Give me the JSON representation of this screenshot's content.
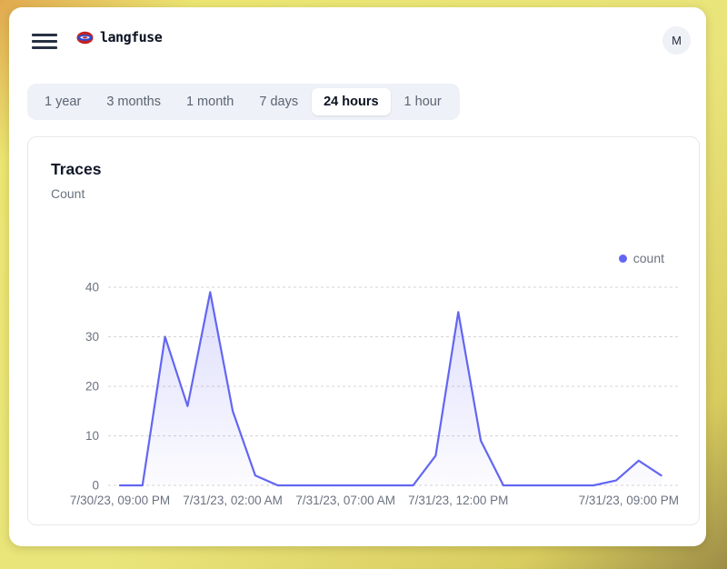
{
  "header": {
    "brand": "langfuse",
    "avatar_initial": "M"
  },
  "time_range_tabs": [
    "1 year",
    "3 months",
    "1 month",
    "7 days",
    "24 hours",
    "1 hour"
  ],
  "active_tab": "24 hours",
  "card": {
    "title": "Traces",
    "subtitle": "Count"
  },
  "legend": {
    "label": "count",
    "color": "#6366f1"
  },
  "chart_data": {
    "type": "area",
    "title": "Traces",
    "ylabel": "Count",
    "series": [
      {
        "name": "count",
        "color": "#6366f1",
        "values": [
          0,
          0,
          30,
          16,
          39,
          15,
          2,
          0,
          0,
          0,
          0,
          0,
          0,
          0,
          6,
          35,
          9,
          0,
          0,
          0,
          0,
          0,
          1,
          5,
          2
        ]
      }
    ],
    "x_ticks": [
      {
        "index": 0,
        "label": "7/30/23, 09:00 PM"
      },
      {
        "index": 5,
        "label": "7/31/23, 02:00 AM"
      },
      {
        "index": 10,
        "label": "7/31/23, 07:00 AM"
      },
      {
        "index": 15,
        "label": "7/31/23, 12:00 PM"
      },
      {
        "index": 24,
        "label": "7/31/23, 09:00 PM"
      }
    ],
    "y_ticks": [
      0,
      10,
      20,
      30,
      40
    ],
    "ylim": [
      0,
      40
    ],
    "grid": "horizontal-dashed",
    "legend_position": "top-right",
    "grid_color": "#d4d4d8",
    "tick_color": "#6b7280"
  }
}
